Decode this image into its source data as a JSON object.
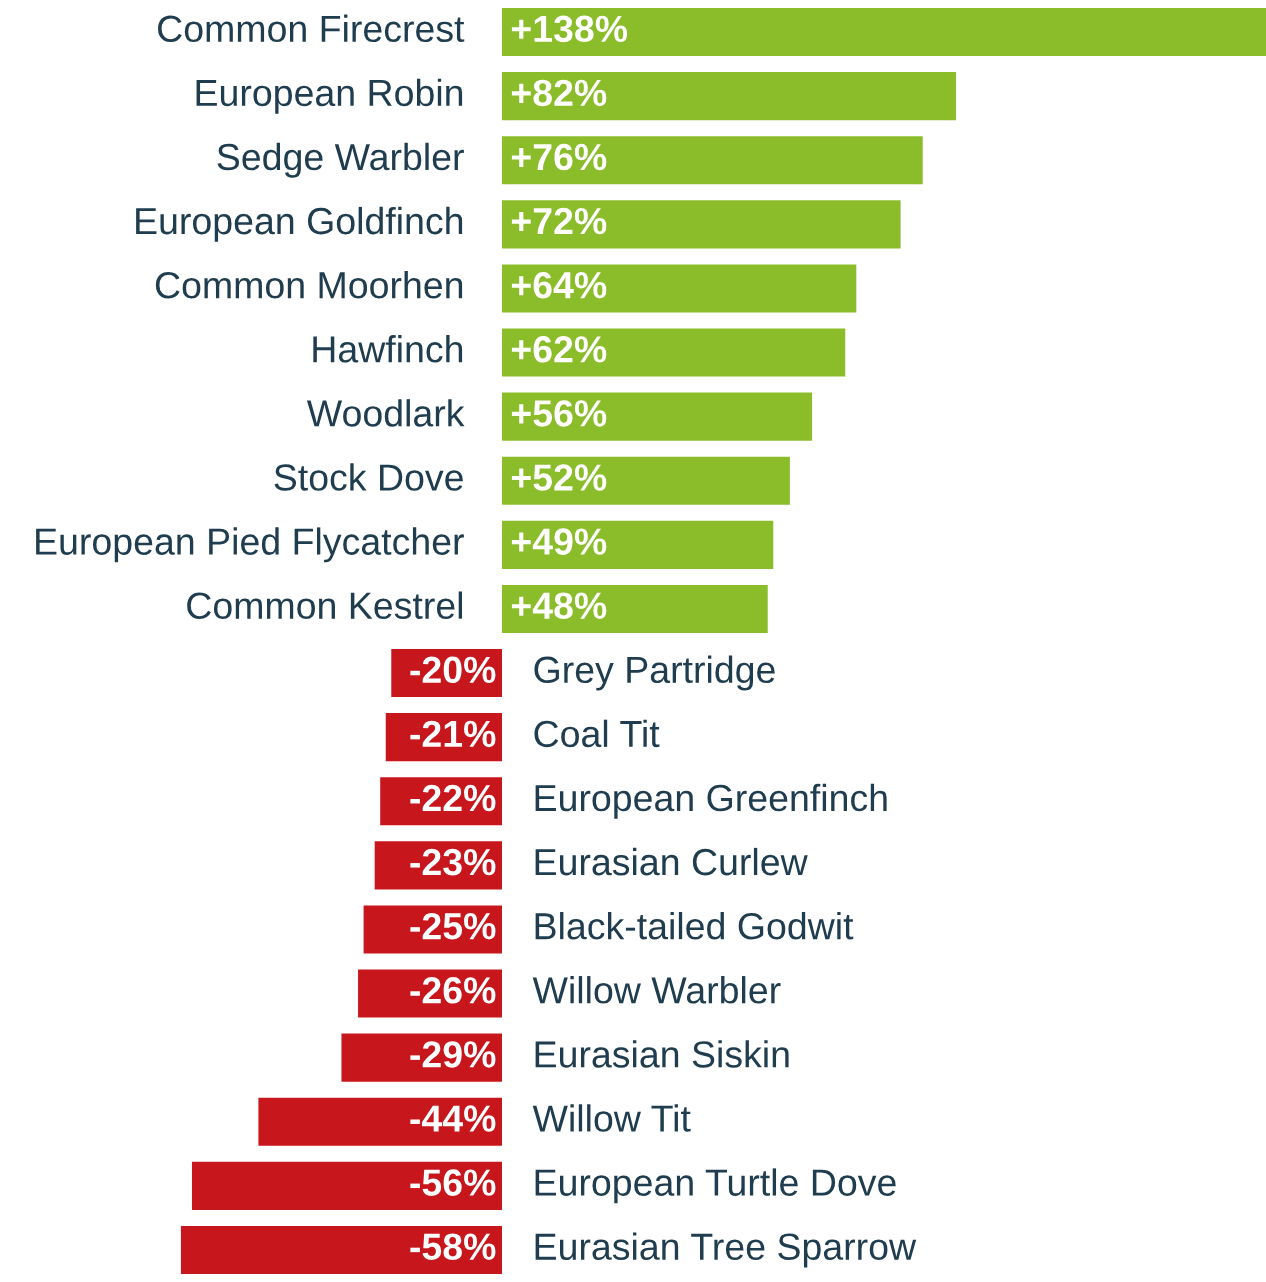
{
  "chart_data": {
    "type": "bar",
    "orientation": "horizontal",
    "categories": [
      "Common Firecrest",
      "European Robin",
      "Sedge Warbler",
      "European Goldfinch",
      "Common Moorhen",
      "Hawfinch",
      "Woodlark",
      "Stock Dove",
      "European Pied Flycatcher",
      "Common Kestrel",
      "Grey Partridge",
      "Coal Tit",
      "European Greenfinch",
      "Eurasian Curlew",
      "Black-tailed Godwit",
      "Willow Warbler",
      "Eurasian Siskin",
      "Willow Tit",
      "European Turtle Dove",
      "Eurasian Tree Sparrow"
    ],
    "values": [
      138,
      82,
      76,
      72,
      64,
      62,
      56,
      52,
      49,
      48,
      -20,
      -21,
      -22,
      -23,
      -25,
      -26,
      -29,
      -44,
      -56,
      -58
    ],
    "value_labels": [
      "+138%",
      "+82%",
      "+76%",
      "+72%",
      "+64%",
      "+62%",
      "+56%",
      "+52%",
      "+49%",
      "+48%",
      "-20%",
      "-21%",
      "-22%",
      "-23%",
      "-25%",
      "-26%",
      "-29%",
      "-44%",
      "-56%",
      "-58%"
    ],
    "colors": [
      "#8bbd2b",
      "#8bbd2b",
      "#8bbd2b",
      "#8bbd2b",
      "#8bbd2b",
      "#8bbd2b",
      "#8bbd2b",
      "#8bbd2b",
      "#8bbd2b",
      "#8bbd2b",
      "#c8161d",
      "#c8161d",
      "#c8161d",
      "#c8161d",
      "#c8161d",
      "#c8161d",
      "#c8161d",
      "#c8161d",
      "#c8161d",
      "#c8161d"
    ]
  }
}
